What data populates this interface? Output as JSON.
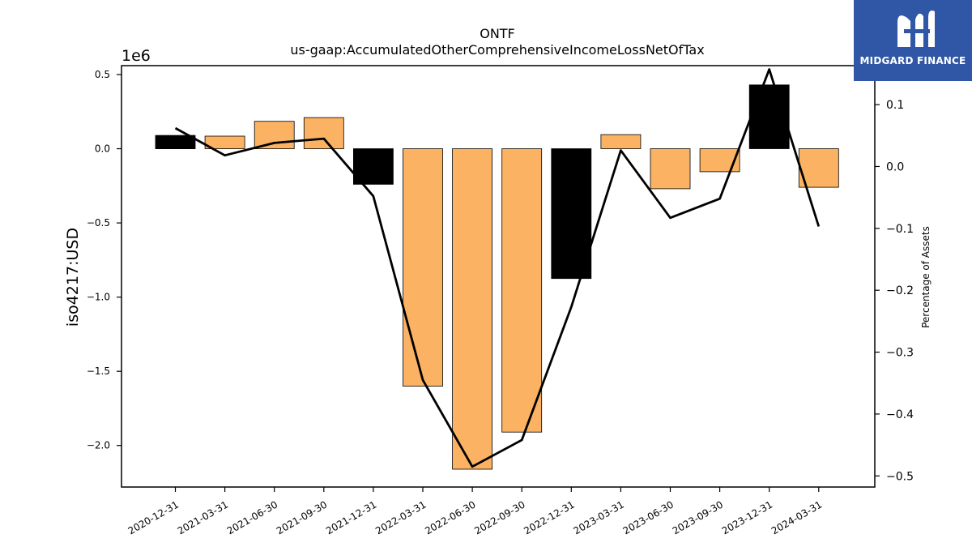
{
  "chart_data": {
    "type": "bar",
    "title": "ONTF",
    "subtitle": "us-gaap:AccumulatedOtherComprehensiveIncomeLossNetOfTax",
    "ylabel": "iso4217:USD",
    "y2label": "Percentage of Assets",
    "y_offset_text": "1e6",
    "categories": [
      "2020-12-31",
      "2021-03-31",
      "2021-06-30",
      "2021-09-30",
      "2021-12-31",
      "2022-03-31",
      "2022-06-30",
      "2022-09-30",
      "2022-12-31",
      "2023-03-31",
      "2023-06-30",
      "2023-09-30",
      "2023-12-31",
      "2024-03-31"
    ],
    "series": [
      {
        "type": "bar",
        "values": [
          0.09,
          0.085,
          0.185,
          0.21,
          -0.24,
          -1.6,
          -2.16,
          -1.91,
          -0.875,
          0.095,
          -0.27,
          -0.155,
          0.43,
          -0.26
        ],
        "bar_colors": [
          "#000000",
          "#fbb262",
          "#fbb262",
          "#fbb262",
          "#000000",
          "#fbb262",
          "#fbb262",
          "#fbb262",
          "#000000",
          "#fbb262",
          "#fbb262",
          "#fbb262",
          "#000000",
          "#fbb262"
        ]
      },
      {
        "type": "line",
        "axis": "right",
        "values": [
          0.062,
          0.018,
          0.038,
          0.045,
          -0.048,
          -0.345,
          -0.485,
          -0.442,
          -0.227,
          0.026,
          -0.083,
          -0.052,
          0.157,
          -0.097
        ],
        "color": "#000000"
      }
    ],
    "ylim": [
      -2.28,
      0.56
    ],
    "y2lim": [
      -0.518,
      0.163
    ],
    "yticks": [
      0.5,
      0.0,
      -0.5,
      -1.0,
      -1.5,
      -2.0
    ],
    "ytick_labels": [
      "0.5",
      "0.0",
      "−0.5",
      "−1.0",
      "−1.5",
      "−2.0"
    ],
    "y2ticks": [
      0.1,
      0.0,
      -0.1,
      -0.2,
      -0.3,
      -0.4,
      -0.5
    ],
    "y2tick_labels": [
      "0.1",
      "0.0",
      "−0.1",
      "−0.2",
      "−0.3",
      "−0.4",
      "−0.5"
    ],
    "grid": false,
    "legend": "none"
  },
  "logo": {
    "text": "MIDGARD FINANCE",
    "color": "#2f57a6"
  }
}
